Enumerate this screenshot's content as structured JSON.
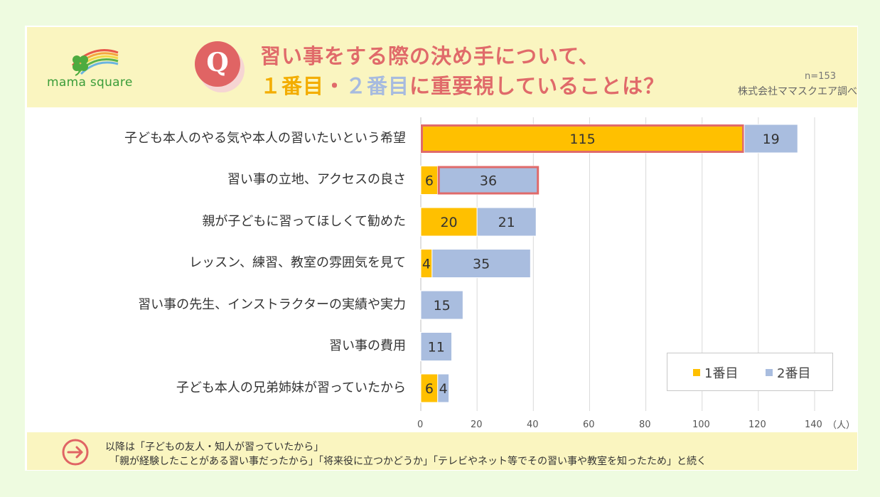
{
  "brand": {
    "name": "mama square",
    "logo_colors": {
      "red": "#e8584a",
      "orange": "#f4a640",
      "yellow": "#f1d84a",
      "green": "#5bb34a",
      "blue": "#6ab4e0",
      "clover": "#4dab3f"
    }
  },
  "header": {
    "q_letter": "Q",
    "title_line1": "習い事をする際の決め手について、",
    "title_first": "１番目",
    "title_sep": "・",
    "title_second": "２番目",
    "title_rest": "に重要視していることは？",
    "sample": "n=153",
    "source": "株式会社ママスクエア調べ"
  },
  "colors": {
    "first": "#ffc000",
    "second": "#a9bddf",
    "highlight": "#e06a6a",
    "grid": "#d9d9d9"
  },
  "chart_data": {
    "type": "bar",
    "orientation": "horizontal",
    "stacked": true,
    "categories": [
      "子ども本人のやる気や本人の習いたいという希望",
      "習い事の立地、アクセスの良さ",
      "親が子どもに習ってほしくて勧めた",
      "レッスン、練習、教室の雰囲気を見て",
      "習い事の先生、インストラクターの実績や実力",
      "習い事の費用",
      "子ども本人の兄弟姉妹が習っていたから"
    ],
    "series": [
      {
        "name": "1番目",
        "values": [
          115,
          6,
          20,
          4,
          0,
          0,
          6
        ]
      },
      {
        "name": "2番目",
        "values": [
          19,
          36,
          21,
          35,
          15,
          11,
          4
        ]
      }
    ],
    "highlighted": [
      {
        "category_index": 0,
        "series_index": 0
      },
      {
        "category_index": 1,
        "series_index": 1
      }
    ],
    "xlim": [
      0,
      140
    ],
    "xticks": [
      0,
      20,
      40,
      60,
      80,
      100,
      120,
      140
    ],
    "xunit": "（人）",
    "legend_position": "bottom-right",
    "grid": true
  },
  "legend": {
    "first": "1番目",
    "second": "2番目"
  },
  "footer": {
    "line1": "以降は「子どもの友人・知人が習っていたから」",
    "line2": "「親が経験したことがある習い事だったから」「将来役に立つかどうか」「テレビやネット等でその習い事や教室を知ったため」と続く"
  }
}
